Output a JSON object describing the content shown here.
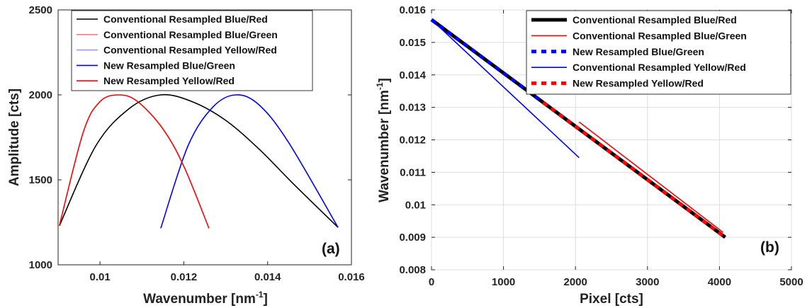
{
  "chart_data": [
    {
      "type": "line",
      "panel_label": "(a)",
      "xlabel": "Wavenumber [nm",
      "xlabel_sup": "-1",
      "xlabel_end": "]",
      "ylabel": "Amplitude [cts]",
      "xlim": [
        0.009,
        0.016
      ],
      "ylim": [
        1000,
        2500
      ],
      "x_ticks": [
        "0.01",
        "0.012",
        "0.014",
        "0.016"
      ],
      "x_tick_values": [
        0.01,
        0.012,
        0.014,
        0.016
      ],
      "y_ticks": [
        "1000",
        "1500",
        "2000",
        "2500"
      ],
      "y_tick_values": [
        1000,
        1500,
        2000,
        2500
      ],
      "legend_position": "top",
      "series": [
        {
          "name": "Conventional Resampled Blue/Red",
          "color": "#000000",
          "style": "solid",
          "x": [
            0.00903,
            0.0099,
            0.0107,
            0.01145,
            0.0122,
            0.013,
            0.0138,
            0.0146,
            0.01568
          ],
          "y": [
            1230,
            1700,
            1920,
            2000,
            1960,
            1850,
            1680,
            1480,
            1220
          ]
        },
        {
          "name": "Conventional Resampled Blue/Green",
          "color": "#f08080",
          "style": "solid",
          "legend_only": true
        },
        {
          "name": "Conventional Resampled Yellow/Red",
          "color": "#9999ff",
          "style": "solid",
          "legend_only": true
        },
        {
          "name": "New Resampled Blue/Green",
          "color": "#0000ff",
          "style": "solid",
          "x": [
            0.01145,
            0.0121,
            0.0127,
            0.01325,
            0.0138,
            0.0145,
            0.01568
          ],
          "y": [
            1215,
            1700,
            1930,
            2000,
            1940,
            1720,
            1220
          ]
        },
        {
          "name": "New Resampled Yellow/Red",
          "color": "#ff0000",
          "style": "solid",
          "x": [
            0.00903,
            0.0096,
            0.01,
            0.01045,
            0.0109,
            0.0115,
            0.012,
            0.0126
          ],
          "y": [
            1230,
            1780,
            1960,
            2000,
            1960,
            1800,
            1580,
            1215
          ]
        }
      ]
    },
    {
      "type": "line",
      "panel_label": "(b)",
      "xlabel": "Pixel [cts]",
      "ylabel": "Wavenumber [nm",
      "ylabel_sup": "-1",
      "ylabel_end": "]",
      "xlim": [
        0,
        5000
      ],
      "ylim": [
        0.008,
        0.016
      ],
      "x_ticks": [
        "0",
        "1000",
        "2000",
        "3000",
        "4000",
        "5000"
      ],
      "x_tick_values": [
        0,
        1000,
        2000,
        3000,
        4000,
        5000
      ],
      "y_ticks": [
        "0.008",
        "0.009",
        "0.01",
        "0.011",
        "0.012",
        "0.013",
        "0.014",
        "0.015",
        "0.016"
      ],
      "y_tick_values": [
        0.008,
        0.009,
        0.01,
        0.011,
        0.012,
        0.013,
        0.014,
        0.015,
        0.016
      ],
      "grid": true,
      "legend_position": "top-right",
      "series": [
        {
          "name": "Conventional Resampled Blue/Red",
          "color": "#000000",
          "style": "thick-solid",
          "x": [
            0,
            4080
          ],
          "y": [
            0.0157,
            0.009
          ]
        },
        {
          "name": "Conventional Resampled Blue/Green",
          "color": "#ff0000",
          "style": "solid",
          "x": [
            2050,
            4050
          ],
          "y": [
            0.01255,
            0.00915
          ]
        },
        {
          "name": "New Resampled Blue/Green",
          "color": "#0000ff",
          "style": "dotted",
          "x": [
            0,
            2050
          ],
          "y": [
            0.0157,
            0.01233
          ]
        },
        {
          "name": "Conventional Resampled Yellow/Red",
          "color": "#0000ff",
          "style": "solid",
          "x": [
            0,
            2050
          ],
          "y": [
            0.0157,
            0.01145
          ]
        },
        {
          "name": "New Resampled Yellow/Red",
          "color": "#ff0000",
          "style": "dotted",
          "x": [
            1550,
            4080
          ],
          "y": [
            0.01315,
            0.009
          ]
        }
      ]
    }
  ]
}
